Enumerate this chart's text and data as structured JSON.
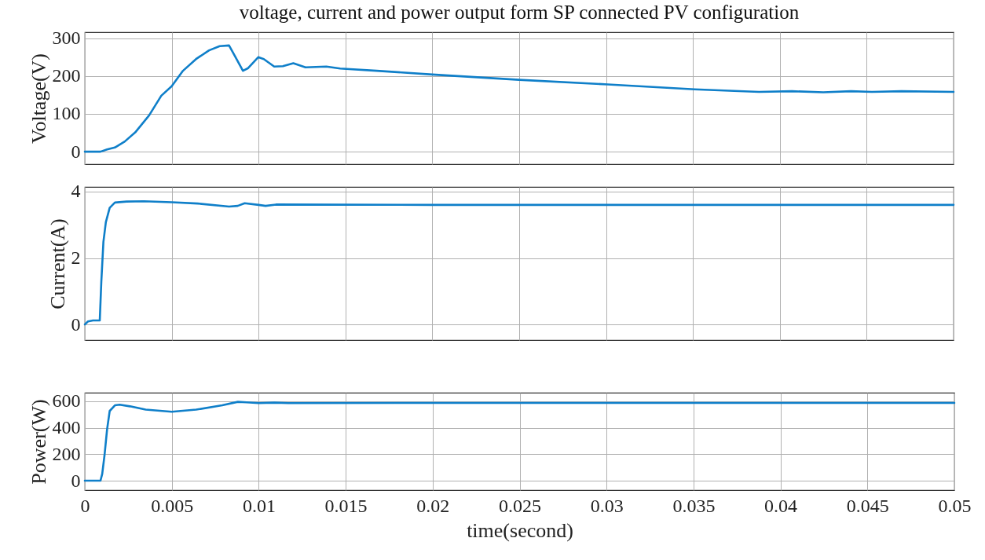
{
  "chart_data": [
    {
      "type": "line",
      "title": "voltage, current and power output form SP connected PV configuration",
      "ylabel": "Voltage(V)",
      "x": [
        0,
        0.0009,
        0.00128,
        0.00173,
        0.0023,
        0.0029,
        0.0037,
        0.0044,
        0.005,
        0.00565,
        0.0064,
        0.00715,
        0.00776,
        0.0083,
        0.0086,
        0.0091,
        0.0094,
        0.00998,
        0.0103,
        0.0109,
        0.0114,
        0.012,
        0.0127,
        0.0139,
        0.0147,
        0.0168,
        0.02,
        0.025,
        0.0301,
        0.0351,
        0.0388,
        0.0407,
        0.0425,
        0.0441,
        0.0453,
        0.047,
        0.05
      ],
      "series": [
        {
          "color": "#0f7fc9",
          "values": [
            0,
            0,
            6,
            11,
            27,
            51,
            96,
            148,
            173,
            214,
            245,
            268,
            279,
            281,
            256,
            214,
            221,
            250,
            245,
            225,
            226,
            234,
            223,
            225,
            220,
            214,
            204,
            190,
            178,
            165,
            158,
            160,
            157,
            160,
            158,
            160,
            158
          ]
        }
      ],
      "xlim": [
        0,
        0.05
      ],
      "xticks": [
        0,
        0.005,
        0.01,
        0.015,
        0.02,
        0.025,
        0.03,
        0.035,
        0.04,
        0.045,
        0.05
      ],
      "ylim": [
        -33,
        316
      ],
      "yticks": [
        0,
        100,
        200,
        300
      ],
      "grid": true,
      "tick_labels": "y"
    },
    {
      "type": "line",
      "ylabel": "Current(A)",
      "x": [
        0,
        0.00018,
        0.00047,
        0.00086,
        0.00095,
        0.00107,
        0.00121,
        0.00143,
        0.00173,
        0.0024,
        0.0034,
        0.005,
        0.0065,
        0.0083,
        0.0088,
        0.0092,
        0.01,
        0.0104,
        0.011,
        0.02,
        0.03,
        0.04,
        0.05
      ],
      "series": [
        {
          "color": "#0f7fc9",
          "values": [
            0,
            0.09,
            0.12,
            0.12,
            1.3,
            2.49,
            3.08,
            3.51,
            3.67,
            3.7,
            3.71,
            3.68,
            3.64,
            3.55,
            3.57,
            3.65,
            3.6,
            3.57,
            3.61,
            3.6,
            3.6,
            3.6,
            3.6
          ]
        }
      ],
      "xlim": [
        0,
        0.05
      ],
      "xticks": [
        0,
        0.005,
        0.01,
        0.015,
        0.02,
        0.025,
        0.03,
        0.035,
        0.04,
        0.045,
        0.05
      ],
      "ylim": [
        -0.47,
        4.14
      ],
      "yticks": [
        0,
        2,
        4
      ],
      "grid": true,
      "tick_labels": "y"
    },
    {
      "type": "line",
      "ylabel": "Power(W)",
      "xlabel": "time(second)",
      "x": [
        0,
        0.0009,
        0.001,
        0.00113,
        0.00128,
        0.00143,
        0.00173,
        0.002,
        0.0026,
        0.0035,
        0.005,
        0.0064,
        0.0079,
        0.0088,
        0.0093,
        0.01,
        0.0109,
        0.0117,
        0.02,
        0.03,
        0.04,
        0.05
      ],
      "series": [
        {
          "color": "#0f7fc9",
          "values": [
            0,
            0,
            51,
            190,
            388,
            527,
            570,
            574,
            562,
            537,
            521,
            537,
            570,
            596,
            592,
            586,
            590,
            586,
            588,
            588,
            588,
            588
          ]
        }
      ],
      "xlim": [
        0,
        0.05
      ],
      "xticks": [
        0,
        0.005,
        0.01,
        0.015,
        0.02,
        0.025,
        0.03,
        0.035,
        0.04,
        0.045,
        0.05
      ],
      "ylim": [
        -71,
        665
      ],
      "yticks": [
        0,
        200,
        400,
        600
      ],
      "grid": true
    }
  ]
}
